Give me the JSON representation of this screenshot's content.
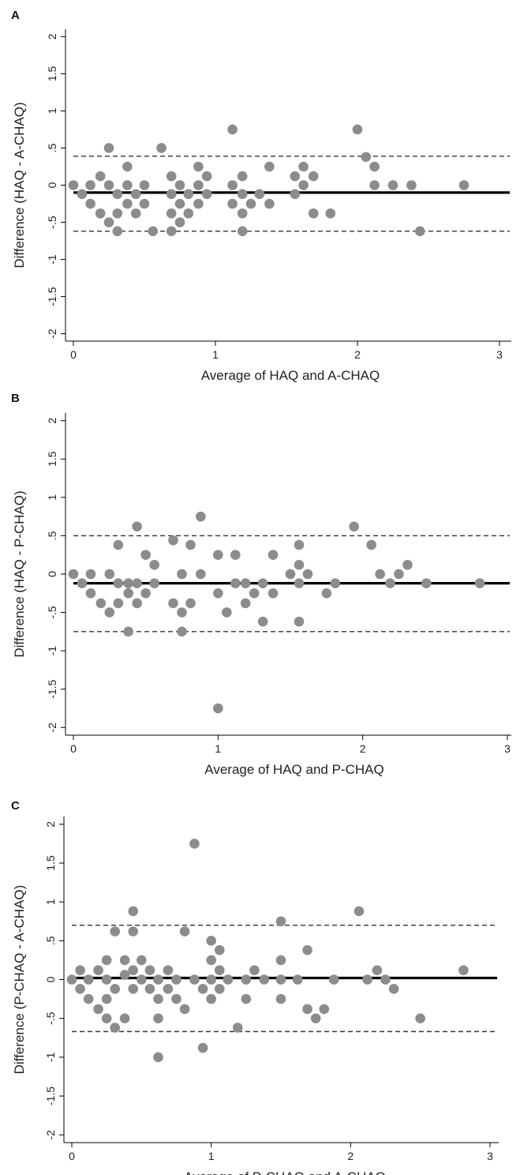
{
  "chart_data": [
    {
      "type": "scatter",
      "panel_label": "A",
      "xlabel": "Average of HAQ and A-CHAQ",
      "ylabel": "Difference (HAQ - A-CHAQ)",
      "xlim": [
        -0.05,
        3.05
      ],
      "ylim": [
        -2.1,
        2.1
      ],
      "xticks": [
        0,
        1,
        2,
        3
      ],
      "xtick_labels": [
        "0",
        "1",
        "2",
        "3"
      ],
      "yticks": [
        2,
        1.5,
        1,
        0.5,
        0,
        -0.5,
        -1,
        -1.5,
        -2
      ],
      "ytick_labels": [
        "2",
        "1.5",
        "1",
        ".5",
        "0",
        "-.5",
        "-1",
        "-1.5",
        "-2"
      ],
      "mean_difference": -0.1,
      "upper_limit": 0.39,
      "lower_limit": -0.62,
      "x": [
        0,
        0.06,
        0.12,
        0.12,
        0.19,
        0.19,
        0.25,
        0.25,
        0.25,
        0.31,
        0.31,
        0.31,
        0.38,
        0.38,
        0.38,
        0.44,
        0.44,
        0.5,
        0.5,
        0.56,
        0.62,
        0.69,
        0.69,
        0.69,
        0.69,
        0.75,
        0.75,
        0.75,
        0.81,
        0.81,
        0.88,
        0.88,
        0.88,
        0.94,
        0.94,
        1.12,
        1.12,
        1.12,
        1.19,
        1.19,
        1.19,
        1.19,
        1.25,
        1.31,
        1.38,
        1.38,
        1.56,
        1.56,
        1.62,
        1.62,
        1.69,
        1.69,
        1.81,
        2,
        2.06,
        2.12,
        2.12,
        2.25,
        2.38,
        2.44,
        2.75
      ],
      "y": [
        0,
        -0.12,
        0,
        -0.25,
        0.12,
        -0.38,
        0.5,
        0,
        -0.5,
        -0.12,
        -0.38,
        -0.62,
        0.25,
        0,
        -0.25,
        -0.12,
        -0.38,
        0,
        -0.25,
        -0.62,
        0.5,
        0.12,
        -0.12,
        -0.38,
        -0.62,
        0,
        -0.25,
        -0.5,
        -0.12,
        -0.38,
        0.25,
        0,
        -0.25,
        0.12,
        -0.12,
        0.75,
        0,
        -0.25,
        0.12,
        -0.12,
        -0.38,
        -0.62,
        -0.25,
        -0.12,
        0.25,
        -0.25,
        0.12,
        -0.12,
        0.25,
        0,
        0.12,
        -0.38,
        -0.38,
        0.75,
        0.38,
        0.25,
        0,
        0,
        0,
        -0.62,
        0
      ]
    },
    {
      "type": "scatter",
      "panel_label": "B",
      "xlabel": "Average of HAQ and P-CHAQ",
      "ylabel": "Difference (HAQ - P-CHAQ)",
      "xlim": [
        -0.05,
        3.05
      ],
      "ylim": [
        -2.1,
        2.1
      ],
      "xticks": [
        0,
        1,
        2,
        3
      ],
      "xtick_labels": [
        "0",
        "1",
        "2",
        "3"
      ],
      "yticks": [
        2,
        1.5,
        1,
        0.5,
        0,
        -0.5,
        -1,
        -1.5,
        -2
      ],
      "ytick_labels": [
        "2",
        "1.5",
        "1",
        ".5",
        "0",
        "-.5",
        "-1",
        "-1.5",
        "-2"
      ],
      "mean_difference": -0.12,
      "upper_limit": 0.5,
      "lower_limit": -0.75,
      "x": [
        0,
        0.06,
        0.12,
        0.12,
        0.19,
        0.25,
        0.25,
        0.31,
        0.31,
        0.31,
        0.38,
        0.38,
        0.38,
        0.44,
        0.44,
        0.44,
        0.5,
        0.5,
        0.56,
        0.56,
        0.69,
        0.69,
        0.75,
        0.75,
        0.75,
        0.81,
        0.81,
        0.88,
        0.88,
        1,
        1,
        1,
        1.06,
        1.12,
        1.12,
        1.19,
        1.19,
        1.25,
        1.31,
        1.31,
        1.38,
        1.38,
        1.5,
        1.56,
        1.56,
        1.56,
        1.56,
        1.62,
        1.75,
        1.81,
        1.94,
        2.06,
        2.12,
        2.19,
        2.25,
        2.31,
        2.44,
        2.81
      ],
      "y": [
        0,
        -0.12,
        0,
        -0.25,
        -0.38,
        0,
        -0.5,
        0.38,
        -0.12,
        -0.38,
        -0.12,
        -0.25,
        -0.75,
        0.62,
        -0.12,
        -0.38,
        0.25,
        -0.25,
        0.12,
        -0.12,
        0.44,
        -0.38,
        0,
        -0.5,
        -0.75,
        0.38,
        -0.38,
        0.75,
        0,
        -1.75,
        0.25,
        -0.25,
        -0.5,
        -0.12,
        0.25,
        -0.12,
        -0.38,
        -0.25,
        -0.12,
        -0.62,
        0.25,
        -0.25,
        0,
        0.38,
        0.12,
        -0.12,
        -0.62,
        0,
        -0.25,
        -0.12,
        0.62,
        0.38,
        0,
        -0.12,
        0,
        0.12,
        -0.12,
        -0.12
      ]
    },
    {
      "type": "scatter",
      "panel_label": "C",
      "xlabel": "Average of P-CHAQ and A-CHAQ",
      "ylabel": "Difference (P-CHAQ - A-CHAQ)",
      "xlim": [
        -0.05,
        3.05
      ],
      "ylim": [
        -2.1,
        2.1
      ],
      "xticks": [
        0,
        1,
        2,
        3
      ],
      "xtick_labels": [
        "0",
        "1",
        "2",
        "3"
      ],
      "yticks": [
        2,
        1.5,
        1,
        0.5,
        0,
        -0.5,
        -1,
        -1.5,
        -2
      ],
      "ytick_labels": [
        "2",
        "1.5",
        "1",
        ".5",
        "0",
        "-.5",
        "-1",
        "-1.5",
        "-2"
      ],
      "mean_difference": 0.02,
      "upper_limit": 0.7,
      "lower_limit": -0.67,
      "x": [
        0,
        0.06,
        0.06,
        0.12,
        0.12,
        0.19,
        0.19,
        0.25,
        0.25,
        0.25,
        0.25,
        0.31,
        0.31,
        0.31,
        0.38,
        0.38,
        0.38,
        0.44,
        0.44,
        0.44,
        0.44,
        0.5,
        0.5,
        0.56,
        0.56,
        0.62,
        0.62,
        0.62,
        0.62,
        0.69,
        0.69,
        0.75,
        0.75,
        0.81,
        0.81,
        0.88,
        0.88,
        0.94,
        0.94,
        1,
        1,
        1,
        1,
        1.06,
        1.06,
        1.06,
        1.12,
        1.19,
        1.25,
        1.25,
        1.31,
        1.38,
        1.5,
        1.5,
        1.5,
        1.5,
        1.62,
        1.69,
        1.69,
        1.75,
        1.81,
        1.88,
        2.06,
        2.12,
        2.19,
        2.25,
        2.31,
        2.5,
        2.81
      ],
      "y": [
        0,
        0.12,
        -0.12,
        0,
        -0.25,
        0.12,
        -0.38,
        0.25,
        0,
        -0.25,
        -0.5,
        0.62,
        -0.12,
        -0.62,
        0.25,
        0.06,
        -0.5,
        0.88,
        0.62,
        0.12,
        -0.12,
        0.25,
        0,
        0.12,
        -0.12,
        0,
        -0.25,
        -0.5,
        -1,
        0.12,
        -0.12,
        0,
        -0.25,
        0.62,
        -0.38,
        1.75,
        0,
        -0.12,
        -0.88,
        0.5,
        0.25,
        0,
        -0.25,
        0.38,
        0.12,
        -0.12,
        0,
        -0.62,
        0,
        -0.25,
        0.12,
        0,
        0.75,
        0.25,
        0,
        -0.25,
        0,
        0.38,
        -0.38,
        -0.5,
        -0.38,
        0,
        0.88,
        0,
        0.12,
        0,
        -0.12,
        -0.5,
        0.12
      ]
    }
  ]
}
